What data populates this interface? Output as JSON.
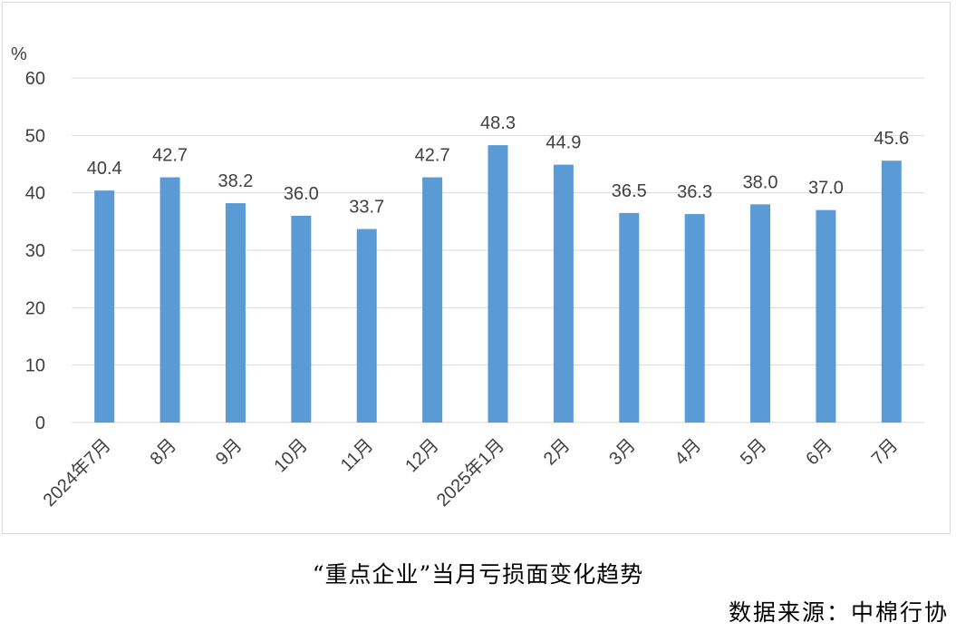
{
  "chart_data": {
    "type": "bar",
    "title": "“重点企业”当月亏损面变化趋势",
    "source": "数据来源：中棉行协",
    "ylabel": "%",
    "ylim": [
      0,
      60
    ],
    "yticks": [
      0,
      10,
      20,
      30,
      40,
      50,
      60
    ],
    "categories": [
      "2024年7月",
      "8月",
      "9月",
      "10月",
      "11月",
      "12月",
      "2025年1月",
      "2月",
      "3月",
      "4月",
      "5月",
      "6月",
      "7月"
    ],
    "values": [
      40.4,
      42.7,
      38.2,
      36.0,
      33.7,
      42.7,
      48.3,
      44.9,
      36.5,
      36.3,
      38.0,
      37.0,
      45.6
    ],
    "value_labels": [
      "40.4",
      "42.7",
      "38.2",
      "36.0",
      "33.7",
      "42.7",
      "48.3",
      "44.9",
      "36.5",
      "36.3",
      "38.0",
      "37.0",
      "45.6"
    ],
    "grid": true,
    "legend": "none",
    "colors": {
      "bar": "#5b9bd5",
      "grid": "#d9d9d9",
      "text": "#404040"
    }
  }
}
